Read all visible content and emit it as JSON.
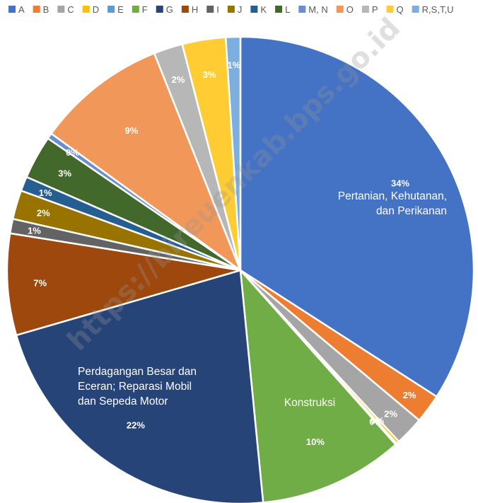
{
  "watermark": "https://bireuenkab.bps.go.id",
  "chart_data": {
    "type": "pie",
    "legend_position": "top",
    "slices": [
      {
        "category": "A",
        "value": 34,
        "label": "34%",
        "color": "#4472C4",
        "name_label": [
          "Pertanian, Kehutanan,",
          "dan Perikanan"
        ]
      },
      {
        "category": "B",
        "value": 2,
        "label": "2%",
        "color": "#ED7D31"
      },
      {
        "category": "C",
        "value": 2,
        "label": "2%",
        "color": "#A5A5A5"
      },
      {
        "category": "D",
        "value": 0.2,
        "label": "0%",
        "color": "#FFC000"
      },
      {
        "category": "E",
        "value": 0.1,
        "label": "0%",
        "color": "#5B9BD5"
      },
      {
        "category": "F",
        "value": 10,
        "label": "10%",
        "color": "#70AD47",
        "name_label": [
          "Konstruksi"
        ]
      },
      {
        "category": "G",
        "value": 22,
        "label": "22%",
        "color": "#264478",
        "name_label": [
          "Perdagangan Besar dan",
          "Eceran; Reparasi Mobil",
          "dan Sepeda Motor"
        ]
      },
      {
        "category": "H",
        "value": 7,
        "label": "7%",
        "color": "#9E480E"
      },
      {
        "category": "I",
        "value": 1,
        "label": "1%",
        "color": "#636363"
      },
      {
        "category": "J",
        "value": 2,
        "label": "2%",
        "color": "#997300"
      },
      {
        "category": "K",
        "value": 1,
        "label": "1%",
        "color": "#255E91"
      },
      {
        "category": "L",
        "value": 3,
        "label": "3%",
        "color": "#43682B"
      },
      {
        "category": "M, N",
        "value": 0.4,
        "label": "0%",
        "color": "#698ED0"
      },
      {
        "category": "O",
        "value": 9,
        "label": "9%",
        "color": "#F1975A"
      },
      {
        "category": "P",
        "value": 2,
        "label": "2%",
        "color": "#B7B7B7"
      },
      {
        "category": "Q",
        "value": 3,
        "label": "3%",
        "color": "#FFCD33"
      },
      {
        "category": "R,S,T,U",
        "value": 1,
        "label": "1%",
        "color": "#7CAFDD"
      }
    ]
  }
}
